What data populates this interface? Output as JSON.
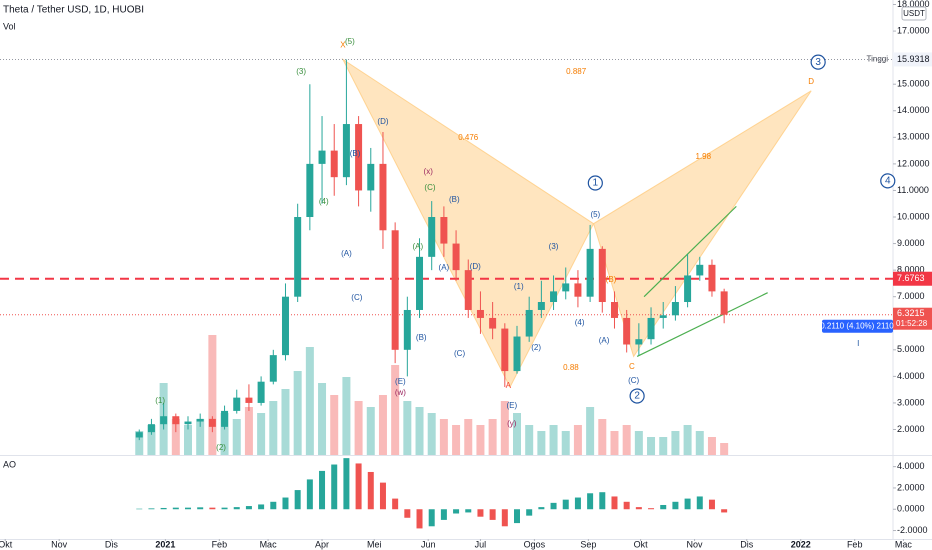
{
  "chart_data": [
    {
      "type": "candlestick",
      "title": "Theta / Tether USD, 1D, HUOBI",
      "volume_title": "Vol",
      "currency": "USDT",
      "x": [
        77,
        84,
        91,
        98,
        105,
        112,
        119,
        126,
        133,
        140,
        147,
        154,
        161,
        168,
        175,
        182,
        189,
        196,
        203,
        210,
        217,
        224,
        231,
        238,
        245,
        252,
        259,
        266,
        273,
        280,
        287,
        294,
        301,
        308,
        315,
        322,
        329,
        336,
        343,
        350,
        357,
        364,
        371,
        378,
        385,
        392,
        399,
        406,
        413
      ],
      "open": [
        1.7,
        1.9,
        2.2,
        2.5,
        2.2,
        2.3,
        2.4,
        2.1,
        2.7,
        3.2,
        3.0,
        3.8,
        4.8,
        7.0,
        10.0,
        12.0,
        12.5,
        11.5,
        13.5,
        11.0,
        12.0,
        9.5,
        5.0,
        6.5,
        8.5,
        10.0,
        9.0,
        8.0,
        6.5,
        6.2,
        5.8,
        4.2,
        5.5,
        6.5,
        6.8,
        7.2,
        7.5,
        7.0,
        8.8,
        6.8,
        6.2,
        5.2,
        5.4,
        6.2,
        6.3,
        6.8,
        7.8,
        8.2,
        7.2
      ],
      "high": [
        2.0,
        2.4,
        3.0,
        2.6,
        2.5,
        2.6,
        2.5,
        2.9,
        3.5,
        3.7,
        4.0,
        5.0,
        7.5,
        10.5,
        15.0,
        13.8,
        13.5,
        15.93,
        13.8,
        12.6,
        13.2,
        9.8,
        7.0,
        9.2,
        10.6,
        10.4,
        9.5,
        8.4,
        7.2,
        6.8,
        6.0,
        5.9,
        7.0,
        7.6,
        7.8,
        8.1,
        8.0,
        9.7,
        8.9,
        7.2,
        6.5,
        6.0,
        6.6,
        6.8,
        7.4,
        8.6,
        8.5,
        8.4,
        7.3
      ],
      "low": [
        1.6,
        1.8,
        2.0,
        1.9,
        2.0,
        2.1,
        1.9,
        2.0,
        2.6,
        2.7,
        2.9,
        3.7,
        4.6,
        6.8,
        9.5,
        10.5,
        10.8,
        11.2,
        10.4,
        10.2,
        8.8,
        4.5,
        4.0,
        6.2,
        8.0,
        8.5,
        7.6,
        6.2,
        5.6,
        5.4,
        3.6,
        4.1,
        5.3,
        6.2,
        6.5,
        6.9,
        6.6,
        6.8,
        6.4,
        5.8,
        4.9,
        4.8,
        5.2,
        5.8,
        6.1,
        6.6,
        7.6,
        7.0,
        6.0
      ],
      "close": [
        1.9,
        2.2,
        2.5,
        2.2,
        2.3,
        2.4,
        2.1,
        2.7,
        3.2,
        3.0,
        3.8,
        4.8,
        7.0,
        10.0,
        12.0,
        12.5,
        11.5,
        13.5,
        11.0,
        12.0,
        9.5,
        5.0,
        6.5,
        8.5,
        10.0,
        9.0,
        8.0,
        6.5,
        6.2,
        5.8,
        4.2,
        5.5,
        6.5,
        6.8,
        7.2,
        7.5,
        7.0,
        8.8,
        6.8,
        6.2,
        5.2,
        5.4,
        6.2,
        6.3,
        6.8,
        7.8,
        8.2,
        7.2,
        6.3215
      ],
      "volume": [
        20,
        25,
        60,
        30,
        25,
        30,
        100,
        35,
        30,
        40,
        35,
        45,
        55,
        70,
        90,
        60,
        50,
        65,
        45,
        40,
        50,
        75,
        45,
        40,
        35,
        30,
        25,
        30,
        25,
        30,
        45,
        35,
        25,
        20,
        25,
        20,
        25,
        40,
        30,
        20,
        25,
        20,
        15,
        15,
        20,
        25,
        20,
        15,
        10
      ],
      "volume_lim": [
        0,
        100
      ],
      "up_color": "#26a69a",
      "down_color": "#ef5350",
      "xlim": [
        -3,
        510
      ],
      "ylim": [
        1.04,
        18.17
      ],
      "yticks": [
        {
          "value": 2,
          "label": "2.0000"
        },
        {
          "value": 3,
          "label": "3.0000"
        },
        {
          "value": 4,
          "label": "4.0000"
        },
        {
          "value": 5,
          "label": "5.0000"
        },
        {
          "value": 6,
          "label": "6.0000"
        },
        {
          "value": 7,
          "label": "7.0000"
        },
        {
          "value": 8,
          "label": "8.0000"
        },
        {
          "value": 9,
          "label": "9.0000"
        },
        {
          "value": 10,
          "label": "10.0000"
        },
        {
          "value": 11,
          "label": "11.0000"
        },
        {
          "value": 12,
          "label": "12.0000"
        },
        {
          "value": 13,
          "label": "13.0000"
        },
        {
          "value": 14,
          "label": "14.0000"
        },
        {
          "value": 15,
          "label": "15.0000"
        },
        {
          "value": 17,
          "label": "17.0000"
        },
        {
          "value": 18,
          "label": "18.0000"
        }
      ],
      "levels": [
        {
          "value": 7.6763,
          "label": "7.6763",
          "color": "#f23645"
        }
      ],
      "last_price": {
        "value": 6.3215,
        "label": "6.3215",
        "countdown": "01:52:28",
        "color": "#ef5350"
      },
      "high_marker": {
        "name": "Tinggi",
        "value": 15.9318,
        "label": "15.9318"
      },
      "change_label": "0.2110 (4.10%) 2110",
      "pattern": {
        "x": [
          194,
          290,
          338,
          361,
          463
        ],
        "y": [
          15.93,
          3.6,
          9.75,
          4.75,
          14.75
        ],
        "color": "#ffcc80"
      },
      "trendlines": [
        {
          "x": [
            363,
            438
          ],
          "y": [
            4.75,
            7.15
          ],
          "color": "#4caf50"
        },
        {
          "x": [
            367,
            420
          ],
          "y": [
            7.0,
            10.4
          ],
          "color": "#4caf50"
        }
      ],
      "annotations": [
        {
          "text": "X",
          "x": 194,
          "y": 16.47,
          "color": "#f57c00"
        },
        {
          "text": "(5)",
          "x": 198,
          "y": 16.6,
          "color": "#388e3c"
        },
        {
          "text": "(3)",
          "x": 170,
          "y": 15.46,
          "color": "#388e3c"
        },
        {
          "text": "(4)",
          "x": 183,
          "y": 10.56,
          "color": "#388e3c"
        },
        {
          "text": "(1)",
          "x": 89,
          "y": 3.08,
          "color": "#388e3c"
        },
        {
          "text": "(2)",
          "x": 124,
          "y": 1.31,
          "color": "#388e3c"
        },
        {
          "text": "(D)",
          "x": 217,
          "y": 13.58,
          "color": "#1e53a0"
        },
        {
          "text": "(B)",
          "x": 201,
          "y": 12.37,
          "color": "#1e53a0"
        },
        {
          "text": "(A)",
          "x": 196,
          "y": 8.61,
          "color": "#1e53a0"
        },
        {
          "text": "(C)",
          "x": 202,
          "y": 6.95,
          "color": "#1e53a0"
        },
        {
          "text": "(x)",
          "x": 243,
          "y": 11.69,
          "color": "#9c2760"
        },
        {
          "text": "(C)",
          "x": 244,
          "y": 11.09,
          "color": "#388e3c"
        },
        {
          "text": "(B)",
          "x": 258,
          "y": 10.64,
          "color": "#1e53a0"
        },
        {
          "text": "(A)",
          "x": 237,
          "y": 8.87,
          "color": "#388e3c"
        },
        {
          "text": "(A)",
          "x": 252,
          "y": 8.08,
          "color": "#1e53a0"
        },
        {
          "text": "(D)",
          "x": 270,
          "y": 8.12,
          "color": "#1e53a0"
        },
        {
          "text": "(B)",
          "x": 239,
          "y": 5.45,
          "color": "#1e53a0"
        },
        {
          "text": "(C)",
          "x": 261,
          "y": 4.84,
          "color": "#1e53a0"
        },
        {
          "text": "(E)",
          "x": 227,
          "y": 3.79,
          "color": "#1e53a0"
        },
        {
          "text": "(w)",
          "x": 227,
          "y": 3.38,
          "color": "#9c2760"
        },
        {
          "text": "(1)",
          "x": 295,
          "y": 7.37,
          "color": "#1e53a0"
        },
        {
          "text": "(3)",
          "x": 315,
          "y": 8.87,
          "color": "#1e53a0"
        },
        {
          "text": "(4)",
          "x": 330,
          "y": 6.01,
          "color": "#1e53a0"
        },
        {
          "text": "(2)",
          "x": 305,
          "y": 5.07,
          "color": "#1e53a0"
        },
        {
          "text": "A",
          "x": 289,
          "y": 3.64,
          "color": "#f44336"
        },
        {
          "text": "(E)",
          "x": 291,
          "y": 2.89,
          "color": "#1e53a0"
        },
        {
          "text": "(y)",
          "x": 291,
          "y": 2.21,
          "color": "#9c2760"
        },
        {
          "text": "(5)",
          "x": 339,
          "y": 10.08,
          "color": "#1e53a0"
        },
        {
          "text": "(B)",
          "x": 348,
          "y": 7.63,
          "color": "#f57c00"
        },
        {
          "text": "(A)",
          "x": 344,
          "y": 5.33,
          "color": "#1e53a0"
        },
        {
          "text": "C",
          "x": 360,
          "y": 4.35,
          "color": "#f57c00"
        },
        {
          "text": "(C)",
          "x": 361,
          "y": 3.83,
          "color": "#1e53a0"
        },
        {
          "text": "1",
          "x": 339,
          "y": 11.28,
          "color": "#1e53a0",
          "circled": true
        },
        {
          "text": "2",
          "x": 363,
          "y": 3.26,
          "color": "#1e53a0",
          "circled": true
        },
        {
          "text": "3",
          "x": 467,
          "y": 15.83,
          "color": "#1e53a0",
          "circled": true
        },
        {
          "text": "4",
          "x": 507,
          "y": 11.36,
          "color": "#1e53a0",
          "circled": true
        },
        {
          "text": "0.887",
          "x": 328,
          "y": 15.46,
          "color": "#f57c00"
        },
        {
          "text": "0.476",
          "x": 266,
          "y": 12.97,
          "color": "#f57c00"
        },
        {
          "text": "1.98",
          "x": 401,
          "y": 12.26,
          "color": "#f57c00"
        },
        {
          "text": "0.88",
          "x": 325,
          "y": 4.32,
          "color": "#f57c00"
        },
        {
          "text": "D",
          "x": 463,
          "y": 15.08,
          "color": "#f57c00"
        },
        {
          "text": "I",
          "x": 490,
          "y": 5.22,
          "color": "#1e53a0"
        }
      ]
    },
    {
      "type": "bar",
      "title": "AO",
      "x": [
        77,
        84,
        91,
        98,
        105,
        112,
        119,
        126,
        133,
        140,
        147,
        154,
        161,
        168,
        175,
        182,
        189,
        196,
        203,
        210,
        217,
        224,
        231,
        238,
        245,
        252,
        259,
        266,
        273,
        280,
        287,
        294,
        301,
        308,
        315,
        322,
        329,
        336,
        343,
        350,
        357,
        364,
        371,
        378,
        385,
        392,
        399,
        406,
        413
      ],
      "values": [
        0.05,
        0.08,
        0.12,
        0.15,
        0.15,
        0.18,
        0.15,
        0.15,
        0.2,
        0.3,
        0.45,
        0.7,
        1.1,
        1.8,
        2.8,
        3.6,
        4.2,
        4.8,
        4.3,
        3.5,
        2.5,
        1.0,
        -0.8,
        -1.8,
        -1.6,
        -1.0,
        -0.4,
        -0.3,
        -0.7,
        -1.0,
        -1.6,
        -1.3,
        -0.6,
        0.2,
        0.6,
        0.9,
        1.1,
        1.5,
        1.6,
        1.2,
        0.7,
        0.2,
        0.1,
        0.4,
        0.7,
        1.0,
        1.2,
        0.9,
        -0.3
      ],
      "up_color": "#26a69a",
      "down_color": "#ef5350",
      "xlim": [
        -3,
        510
      ],
      "ylim": [
        -2.7,
        5.0
      ],
      "yticks": [
        {
          "value": 4,
          "label": "4.0000"
        },
        {
          "value": 2,
          "label": "2.0000"
        },
        {
          "value": 0,
          "label": "0.0000"
        },
        {
          "value": -2,
          "label": "-2.0000"
        }
      ],
      "xticks": [
        {
          "value": 0,
          "label": "Okt"
        },
        {
          "value": 31,
          "label": "Nov"
        },
        {
          "value": 61,
          "label": "Dis"
        },
        {
          "value": 92,
          "label": "2021"
        },
        {
          "value": 123,
          "label": "Feb"
        },
        {
          "value": 151,
          "label": "Mac"
        },
        {
          "value": 182,
          "label": "Apr"
        },
        {
          "value": 212,
          "label": "Mei"
        },
        {
          "value": 243,
          "label": "Jun"
        },
        {
          "value": 273,
          "label": "Jul"
        },
        {
          "value": 304,
          "label": "Ogos"
        },
        {
          "value": 335,
          "label": "Sep"
        },
        {
          "value": 365,
          "label": "Okt"
        },
        {
          "value": 396,
          "label": "Nov"
        },
        {
          "value": 426,
          "label": "Dis"
        },
        {
          "value": 457,
          "label": "2022"
        },
        {
          "value": 488,
          "label": "Feb"
        },
        {
          "value": 516,
          "label": "Mac"
        }
      ]
    }
  ]
}
